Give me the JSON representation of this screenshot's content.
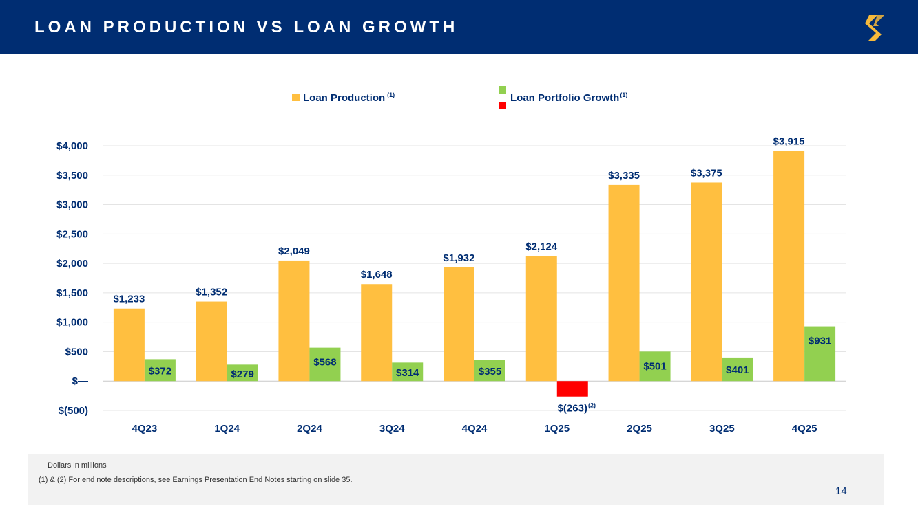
{
  "header": {
    "title": "LOAN PRODUCTION VS LOAN GROWTH",
    "logo_icon": "brand-s-logo-icon",
    "accent_color": "#f6b93b",
    "background_color": "#002d72"
  },
  "chart_data": {
    "type": "bar",
    "title": "",
    "xlabel": "",
    "ylabel": "",
    "categories": [
      "4Q23",
      "1Q24",
      "2Q24",
      "3Q24",
      "4Q24",
      "1Q25",
      "2Q25",
      "3Q25",
      "4Q25"
    ],
    "series": [
      {
        "name": "Loan Production",
        "footnote": "(1)",
        "color": "#ffbf40",
        "values": [
          1233,
          1352,
          2049,
          1648,
          1932,
          2124,
          3335,
          3375,
          3915
        ],
        "labels": [
          "$1,233",
          "$1,352",
          "$2,049",
          "$1,648",
          "$1,932",
          "$2,124",
          "$3,335",
          "$3,375",
          "$3,915"
        ]
      },
      {
        "name": "Loan Portfolio Growth",
        "footnote": "(1)",
        "color": "#92d050",
        "negative_color": "#ff0000",
        "values": [
          372,
          279,
          568,
          314,
          355,
          -263,
          501,
          401,
          931
        ],
        "labels": [
          "$372",
          "$279",
          "$568",
          "$314",
          "$355",
          "$(263)",
          "$501",
          "$401",
          "$931"
        ],
        "label_notes": [
          "",
          "",
          "",
          "",
          "",
          "(2)",
          "",
          "",
          ""
        ]
      }
    ],
    "ylim": [
      -500,
      4000
    ],
    "yticks": [
      -500,
      0,
      500,
      1000,
      1500,
      2000,
      2500,
      3000,
      3500,
      4000
    ],
    "ytick_labels": [
      "$(500)",
      "$—",
      "$500",
      "$1,000",
      "$1,500",
      "$2,000",
      "$2,500",
      "$3,000",
      "$3,500",
      "$4,000"
    ],
    "grid": true,
    "legend_position": "top-center",
    "label_color": "#002d72"
  },
  "footer": {
    "units_note": "Dollars in millions",
    "end_notes": "(1) & (2)  For end note descriptions, see Earnings Presentation End Notes starting on slide 35.",
    "page_number": "14"
  }
}
